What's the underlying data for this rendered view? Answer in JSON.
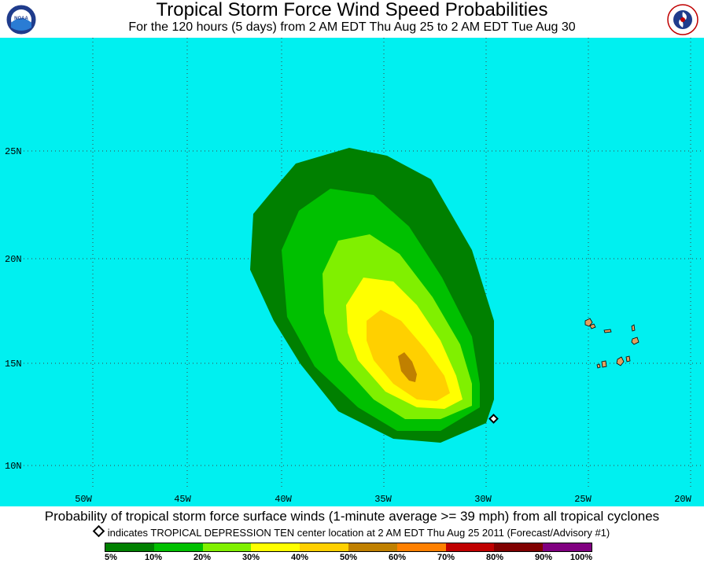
{
  "header": {
    "title": "Tropical Storm Force Wind Speed Probabilities",
    "subtitle": "For the 120 hours (5 days) from 2 AM EDT Thu Aug 25 to 2 AM EDT Tue Aug 30"
  },
  "logos": {
    "left": "NOAA",
    "right": "National Weather Service"
  },
  "map": {
    "ocean_color": "#00f0f0",
    "lat_labels": [
      "25N",
      "20N",
      "15N",
      "10N"
    ],
    "lon_labels": [
      "50W",
      "45W",
      "40W",
      "35W",
      "30W",
      "25W",
      "20W"
    ],
    "storm_marker": "Tropical Depression Ten center"
  },
  "footer": {
    "caption": "Probability of tropical storm force surface winds (1-minute average >= 39 mph) from all tropical cyclones",
    "legend_text": "indicates TROPICAL DEPRESSION TEN center location at 2 AM EDT Thu Aug 25 2011 (Forecast/Advisory #1)"
  },
  "colorbar": {
    "colors": [
      "#008000",
      "#00c000",
      "#80f000",
      "#ffff00",
      "#ffd000",
      "#c08000",
      "#ff8000",
      "#c00000",
      "#800000",
      "#800080"
    ],
    "labels": [
      "5%",
      "10%",
      "20%",
      "30%",
      "40%",
      "50%",
      "60%",
      "70%",
      "80%",
      "90%",
      "100%"
    ]
  }
}
